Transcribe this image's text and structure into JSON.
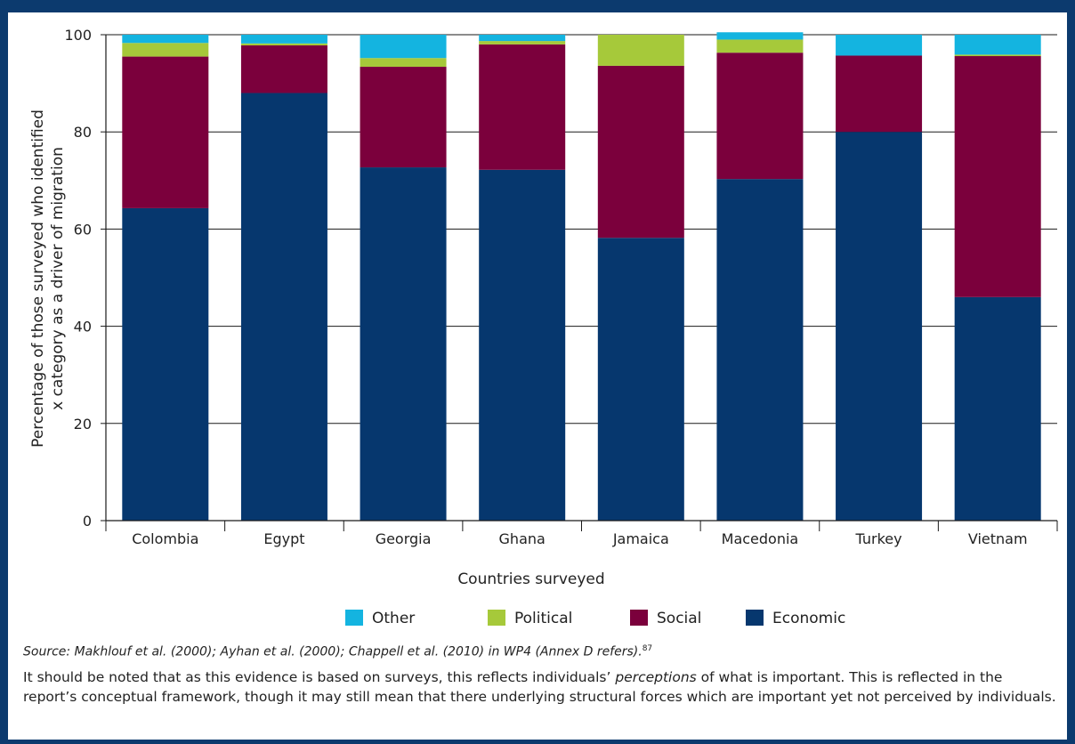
{
  "chart_data": {
    "type": "bar",
    "stacked": true,
    "categories": [
      "Colombia",
      "Egypt",
      "Georgia",
      "Ghana",
      "Jamaica",
      "Macedonia",
      "Turkey",
      "Vietnam"
    ],
    "series": [
      {
        "name": "Economic",
        "color": "#06376e",
        "values": [
          64.3,
          88,
          72.7,
          72.2,
          58.2,
          70.3,
          80,
          46
        ]
      },
      {
        "name": "Social",
        "color": "#7b003c",
        "values": [
          31.2,
          9.8,
          20.7,
          25.8,
          35.4,
          26,
          15.7,
          49.6
        ]
      },
      {
        "name": "Political",
        "color": "#a6c93a",
        "values": [
          2.8,
          0.4,
          1.8,
          0.7,
          6.4,
          2.7,
          0,
          0.3
        ]
      },
      {
        "name": "Other",
        "color": "#14b4e0",
        "values": [
          1.7,
          1.8,
          4.8,
          1.3,
          0,
          1.5,
          4.3,
          4.1
        ]
      }
    ],
    "xlabel": "Countries surveyed",
    "ylabel_lines": [
      "Percentage of those surveyed who identified",
      "x category as a driver of migration"
    ],
    "ylim": [
      0,
      100
    ],
    "yticks": [
      0,
      20,
      40,
      60,
      80,
      100
    ],
    "grid": true,
    "legend": {
      "placement": "bottom-center",
      "order": [
        "Other",
        "Political",
        "Social",
        "Economic"
      ]
    }
  },
  "source": {
    "text": "Source: Makhlouf et al. (2000); Ayhan et al. (2000); Chappell et al. (2010) in WP4 (Annex D refers).",
    "footnote_ref": "87"
  },
  "note": {
    "before": "It should be noted that as this evidence is based on surveys, this reflects individuals’ ",
    "emphasis": "perceptions",
    "after": " of what is important. This is reflected in the report’s conceptual framework, though it may still mean that there underlying structural forces which are important yet not perceived by individuals."
  },
  "colors": {
    "frame": "#0c3a6e"
  }
}
